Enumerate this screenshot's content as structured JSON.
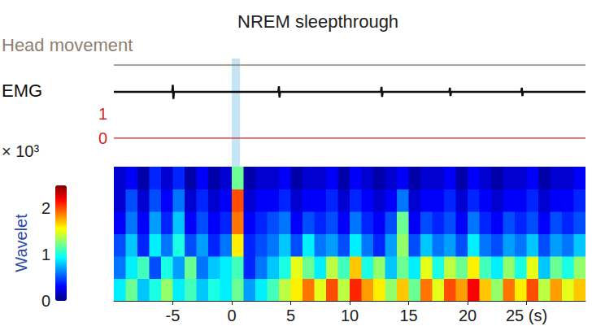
{
  "chart_data": {
    "type": "spectrogram",
    "title": "NREM sleepthrough",
    "xlim": [
      -10,
      30
    ],
    "xticks": [
      -5,
      0,
      5,
      10,
      15,
      20,
      {
        "value": 25,
        "label": "25 (s)"
      }
    ],
    "highlight": [
      0,
      0.7
    ],
    "tick_labels": "x",
    "traces": [
      {
        "name": "Head movement",
        "type": "line",
        "color": "#8f8070",
        "x": [
          -10,
          30
        ],
        "values": [
          0,
          0
        ],
        "ylim": [
          -1,
          1
        ]
      },
      {
        "name": "EMG",
        "type": "line",
        "color": "#111111",
        "x": [
          -10,
          -5.05,
          -5,
          -4.95,
          -4.9,
          3.95,
          4,
          4.05,
          4.1,
          12.65,
          12.7,
          12.75,
          12.8,
          18.45,
          18.5,
          18.55,
          18.6,
          24.55,
          24.6,
          24.65,
          24.7,
          30
        ],
        "values": [
          0,
          0,
          1,
          -1,
          0,
          0,
          0.8,
          -0.8,
          0,
          0,
          0.7,
          -0.7,
          0,
          0,
          0.6,
          -0.6,
          0,
          0,
          0.6,
          -0.6,
          0,
          0
        ],
        "ylim": [
          -1.5,
          1.5
        ]
      },
      {
        "type": "line",
        "color": "#d62728",
        "x": [
          -10,
          30
        ],
        "values": [
          0,
          0
        ],
        "ylim": [
          0,
          1
        ],
        "yticks": [
          0,
          1
        ]
      }
    ],
    "heatmap": {
      "x_edges": [
        -10,
        -9,
        -8,
        -7,
        -6,
        -5,
        -4,
        -3,
        -2,
        -1,
        0,
        1,
        2,
        3,
        4,
        5,
        6,
        7,
        8,
        9,
        10,
        11,
        12,
        13,
        14,
        15,
        16,
        17,
        18,
        19,
        20,
        21,
        22,
        23,
        24,
        25,
        26,
        27,
        28,
        29,
        30
      ],
      "ylim": [
        0,
        6
      ],
      "cells": [
        [
          0.9,
          1.2,
          0.8,
          1.0,
          1.3,
          0.9,
          1.1,
          0.8,
          1.0,
          0.9,
          1.2,
          0.7,
          0.9,
          1.1,
          1.4,
          1.6,
          1.9,
          1.5,
          2.0,
          1.4,
          2.1,
          1.8,
          1.6,
          1.3,
          1.7,
          1.2,
          1.9,
          1.5,
          2.0,
          1.8,
          2.2,
          1.7,
          1.3,
          1.9,
          1.6,
          2.0,
          1.4,
          1.8,
          1.5,
          1.7
        ],
        [
          0.6,
          0.9,
          1.1,
          0.5,
          1.0,
          0.7,
          1.2,
          0.6,
          0.8,
          0.9,
          1.1,
          0.4,
          0.6,
          0.8,
          1.0,
          1.5,
          1.2,
          0.9,
          1.4,
          1.1,
          1.7,
          1.0,
          1.3,
          0.8,
          1.2,
          0.9,
          1.5,
          1.0,
          1.4,
          1.2,
          1.6,
          1.1,
          0.9,
          1.3,
          1.0,
          1.5,
          0.8,
          1.2,
          1.0,
          1.3
        ],
        [
          0.5,
          0.8,
          0.4,
          0.9,
          0.6,
          1.0,
          0.5,
          0.7,
          0.4,
          0.6,
          1.6,
          0.4,
          0.5,
          0.6,
          0.8,
          0.5,
          0.9,
          0.6,
          0.7,
          0.5,
          0.9,
          0.6,
          0.4,
          0.7,
          1.3,
          0.5,
          0.8,
          0.6,
          0.7,
          0.5,
          0.9,
          0.6,
          0.5,
          0.7,
          0.6,
          0.8,
          0.5,
          0.7,
          0.6,
          0.8
        ],
        [
          0.3,
          0.6,
          0.3,
          0.7,
          0.4,
          0.8,
          0.3,
          0.5,
          0.3,
          0.4,
          1.9,
          0.3,
          0.4,
          0.5,
          0.6,
          0.3,
          0.5,
          0.4,
          0.5,
          0.3,
          0.6,
          0.4,
          0.3,
          0.5,
          1.2,
          0.3,
          0.5,
          0.4,
          0.5,
          0.3,
          0.6,
          0.4,
          0.3,
          0.5,
          0.4,
          0.5,
          0.3,
          0.5,
          0.4,
          0.5
        ],
        [
          0.2,
          0.5,
          0.2,
          0.5,
          0.3,
          0.6,
          0.2,
          0.4,
          0.2,
          0.3,
          2.0,
          0.2,
          0.3,
          0.3,
          0.4,
          0.2,
          0.3,
          0.3,
          0.4,
          0.2,
          0.4,
          0.3,
          0.2,
          0.3,
          0.6,
          0.2,
          0.3,
          0.3,
          0.4,
          0.2,
          0.4,
          0.3,
          0.2,
          0.3,
          0.3,
          0.4,
          0.2,
          0.3,
          0.3,
          0.4
        ],
        [
          0.2,
          0.3,
          0.1,
          0.4,
          0.2,
          0.4,
          0.1,
          0.3,
          0.1,
          0.2,
          1.2,
          0.1,
          0.2,
          0.2,
          0.3,
          0.1,
          0.2,
          0.2,
          0.3,
          0.1,
          0.3,
          0.2,
          0.1,
          0.2,
          0.3,
          0.1,
          0.2,
          0.2,
          0.3,
          0.1,
          0.3,
          0.2,
          0.1,
          0.2,
          0.2,
          0.3,
          0.1,
          0.2,
          0.2,
          0.3
        ]
      ],
      "colorbar": {
        "label": "Wavelet",
        "scale_label": "× 10³",
        "range": [
          0,
          2.5
        ],
        "ticks": [
          0,
          1,
          2
        ]
      }
    }
  }
}
